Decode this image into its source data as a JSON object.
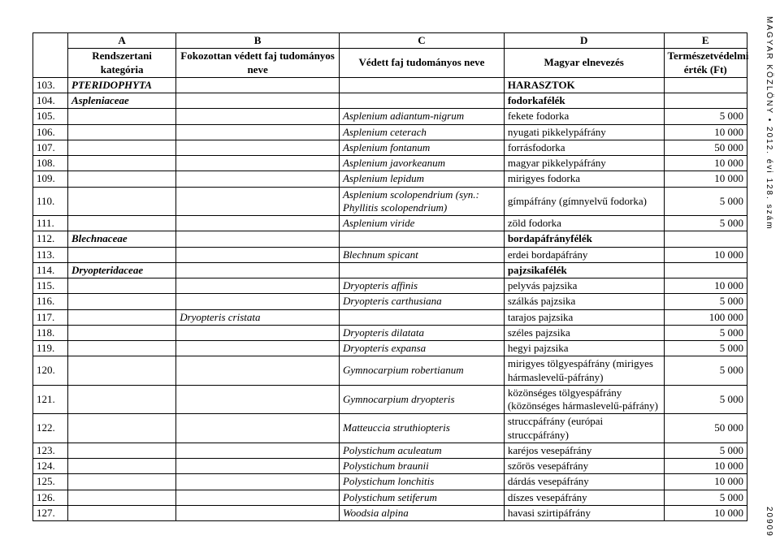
{
  "sidetext": "MAGYAR KÖZLÖNY • 2012. évi 128. szám",
  "pagenum": "20909",
  "table": {
    "colLetters": [
      "A",
      "B",
      "C",
      "D",
      "E"
    ],
    "headers": {
      "colA": "Rendszertani kategória",
      "colB": "Fokozottan védett faj tudományos neve",
      "colC": "Védett faj tudományos neve",
      "colD": "Magyar elnevezés",
      "colE": "Természetvédelmi érték (Ft)"
    },
    "rows": [
      {
        "num": "103.",
        "A": "PTERIDOPHYTA",
        "B": "",
        "C": "",
        "D": "HARASZTOK",
        "Dbold": true,
        "E": ""
      },
      {
        "num": "104.",
        "A": "Aspleniaceae",
        "B": "",
        "C": "",
        "D": "fodorkafélék",
        "Dbold": true,
        "E": ""
      },
      {
        "num": "105.",
        "A": "",
        "B": "",
        "C": "Asplenium adiantum-nigrum",
        "D": "fekete fodorka",
        "E": "5 000"
      },
      {
        "num": "106.",
        "A": "",
        "B": "",
        "C": "Asplenium ceterach",
        "D": "nyugati pikkelypáfrány",
        "E": "10 000"
      },
      {
        "num": "107.",
        "A": "",
        "B": "",
        "C": "Asplenium fontanum",
        "D": "forrásfodorka",
        "E": "50 000"
      },
      {
        "num": "108.",
        "A": "",
        "B": "",
        "C": "Asplenium javorkeanum",
        "D": "magyar pikkelypáfrány",
        "E": "10 000"
      },
      {
        "num": "109.",
        "A": "",
        "B": "",
        "C": "Asplenium lepidum",
        "D": "mirigyes fodorka",
        "E": "10 000"
      },
      {
        "num": "110.",
        "A": "",
        "B": "",
        "C": "Asplenium scolopendrium (syn.:\nPhyllitis scolopendrium)",
        "D": "gímpáfrány (gímnyelvű fodorka)",
        "E": "5 000"
      },
      {
        "num": "111.",
        "A": "",
        "B": "",
        "C": "Asplenium viride",
        "D": "zöld fodorka",
        "E": "5 000"
      },
      {
        "num": "112.",
        "A": "Blechnaceae",
        "B": "",
        "C": "",
        "D": "bordapáfrányfélék",
        "Dbold": true,
        "E": ""
      },
      {
        "num": "113.",
        "A": "",
        "B": "",
        "C": "Blechnum spicant",
        "D": "erdei bordapáfrány",
        "E": "10 000"
      },
      {
        "num": "114.",
        "A": "Dryopteridaceae",
        "B": "",
        "C": "",
        "D": "pajzsikafélék",
        "Dbold": true,
        "E": ""
      },
      {
        "num": "115.",
        "A": "",
        "B": "",
        "C": "Dryopteris affinis",
        "D": "pelyvás pajzsika",
        "E": "10 000"
      },
      {
        "num": "116.",
        "A": "",
        "B": "",
        "C": "Dryopteris carthusiana",
        "D": "szálkás pajzsika",
        "E": "5 000"
      },
      {
        "num": "117.",
        "A": "",
        "B": "Dryopteris cristata",
        "C": "",
        "D": "tarajos pajzsika",
        "E": "100 000"
      },
      {
        "num": "118.",
        "A": "",
        "B": "",
        "C": "Dryopteris dilatata",
        "D": "széles pajzsika",
        "E": "5 000"
      },
      {
        "num": "119.",
        "A": "",
        "B": "",
        "C": "Dryopteris expansa",
        "D": "hegyi pajzsika",
        "E": "5 000"
      },
      {
        "num": "120.",
        "A": "",
        "B": "",
        "C": "Gymnocarpium robertianum",
        "D": "mirigyes tölgyespáfrány (mirigyes hármaslevelű-páfrány)",
        "E": "5 000"
      },
      {
        "num": "121.",
        "A": "",
        "B": "",
        "C": "Gymnocarpium dryopteris",
        "D": "közönséges tölgyespáfrány (közönséges hármaslevelű-páfrány)",
        "E": "5 000"
      },
      {
        "num": "122.",
        "A": "",
        "B": "",
        "C": "Matteuccia struthiopteris",
        "D": "struccpáfrány (európai struccpáfrány)",
        "E": "50 000"
      },
      {
        "num": "123.",
        "A": "",
        "B": "",
        "C": "Polystichum aculeatum",
        "D": "karéjos vesepáfrány",
        "E": "5 000"
      },
      {
        "num": "124.",
        "A": "",
        "B": "",
        "C": "Polystichum braunii",
        "D": "szőrös vesepáfrány",
        "E": "10 000"
      },
      {
        "num": "125.",
        "A": "",
        "B": "",
        "C": "Polystichum lonchitis",
        "D": "dárdás vesepáfrány",
        "E": "10 000"
      },
      {
        "num": "126.",
        "A": "",
        "B": "",
        "C": "Polystichum setiferum",
        "D": "díszes vesepáfrány",
        "E": "5 000"
      },
      {
        "num": "127.",
        "A": "",
        "B": "",
        "C": "Woodsia alpina",
        "D": "havasi szirtipáfrány",
        "E": "10 000"
      }
    ]
  }
}
